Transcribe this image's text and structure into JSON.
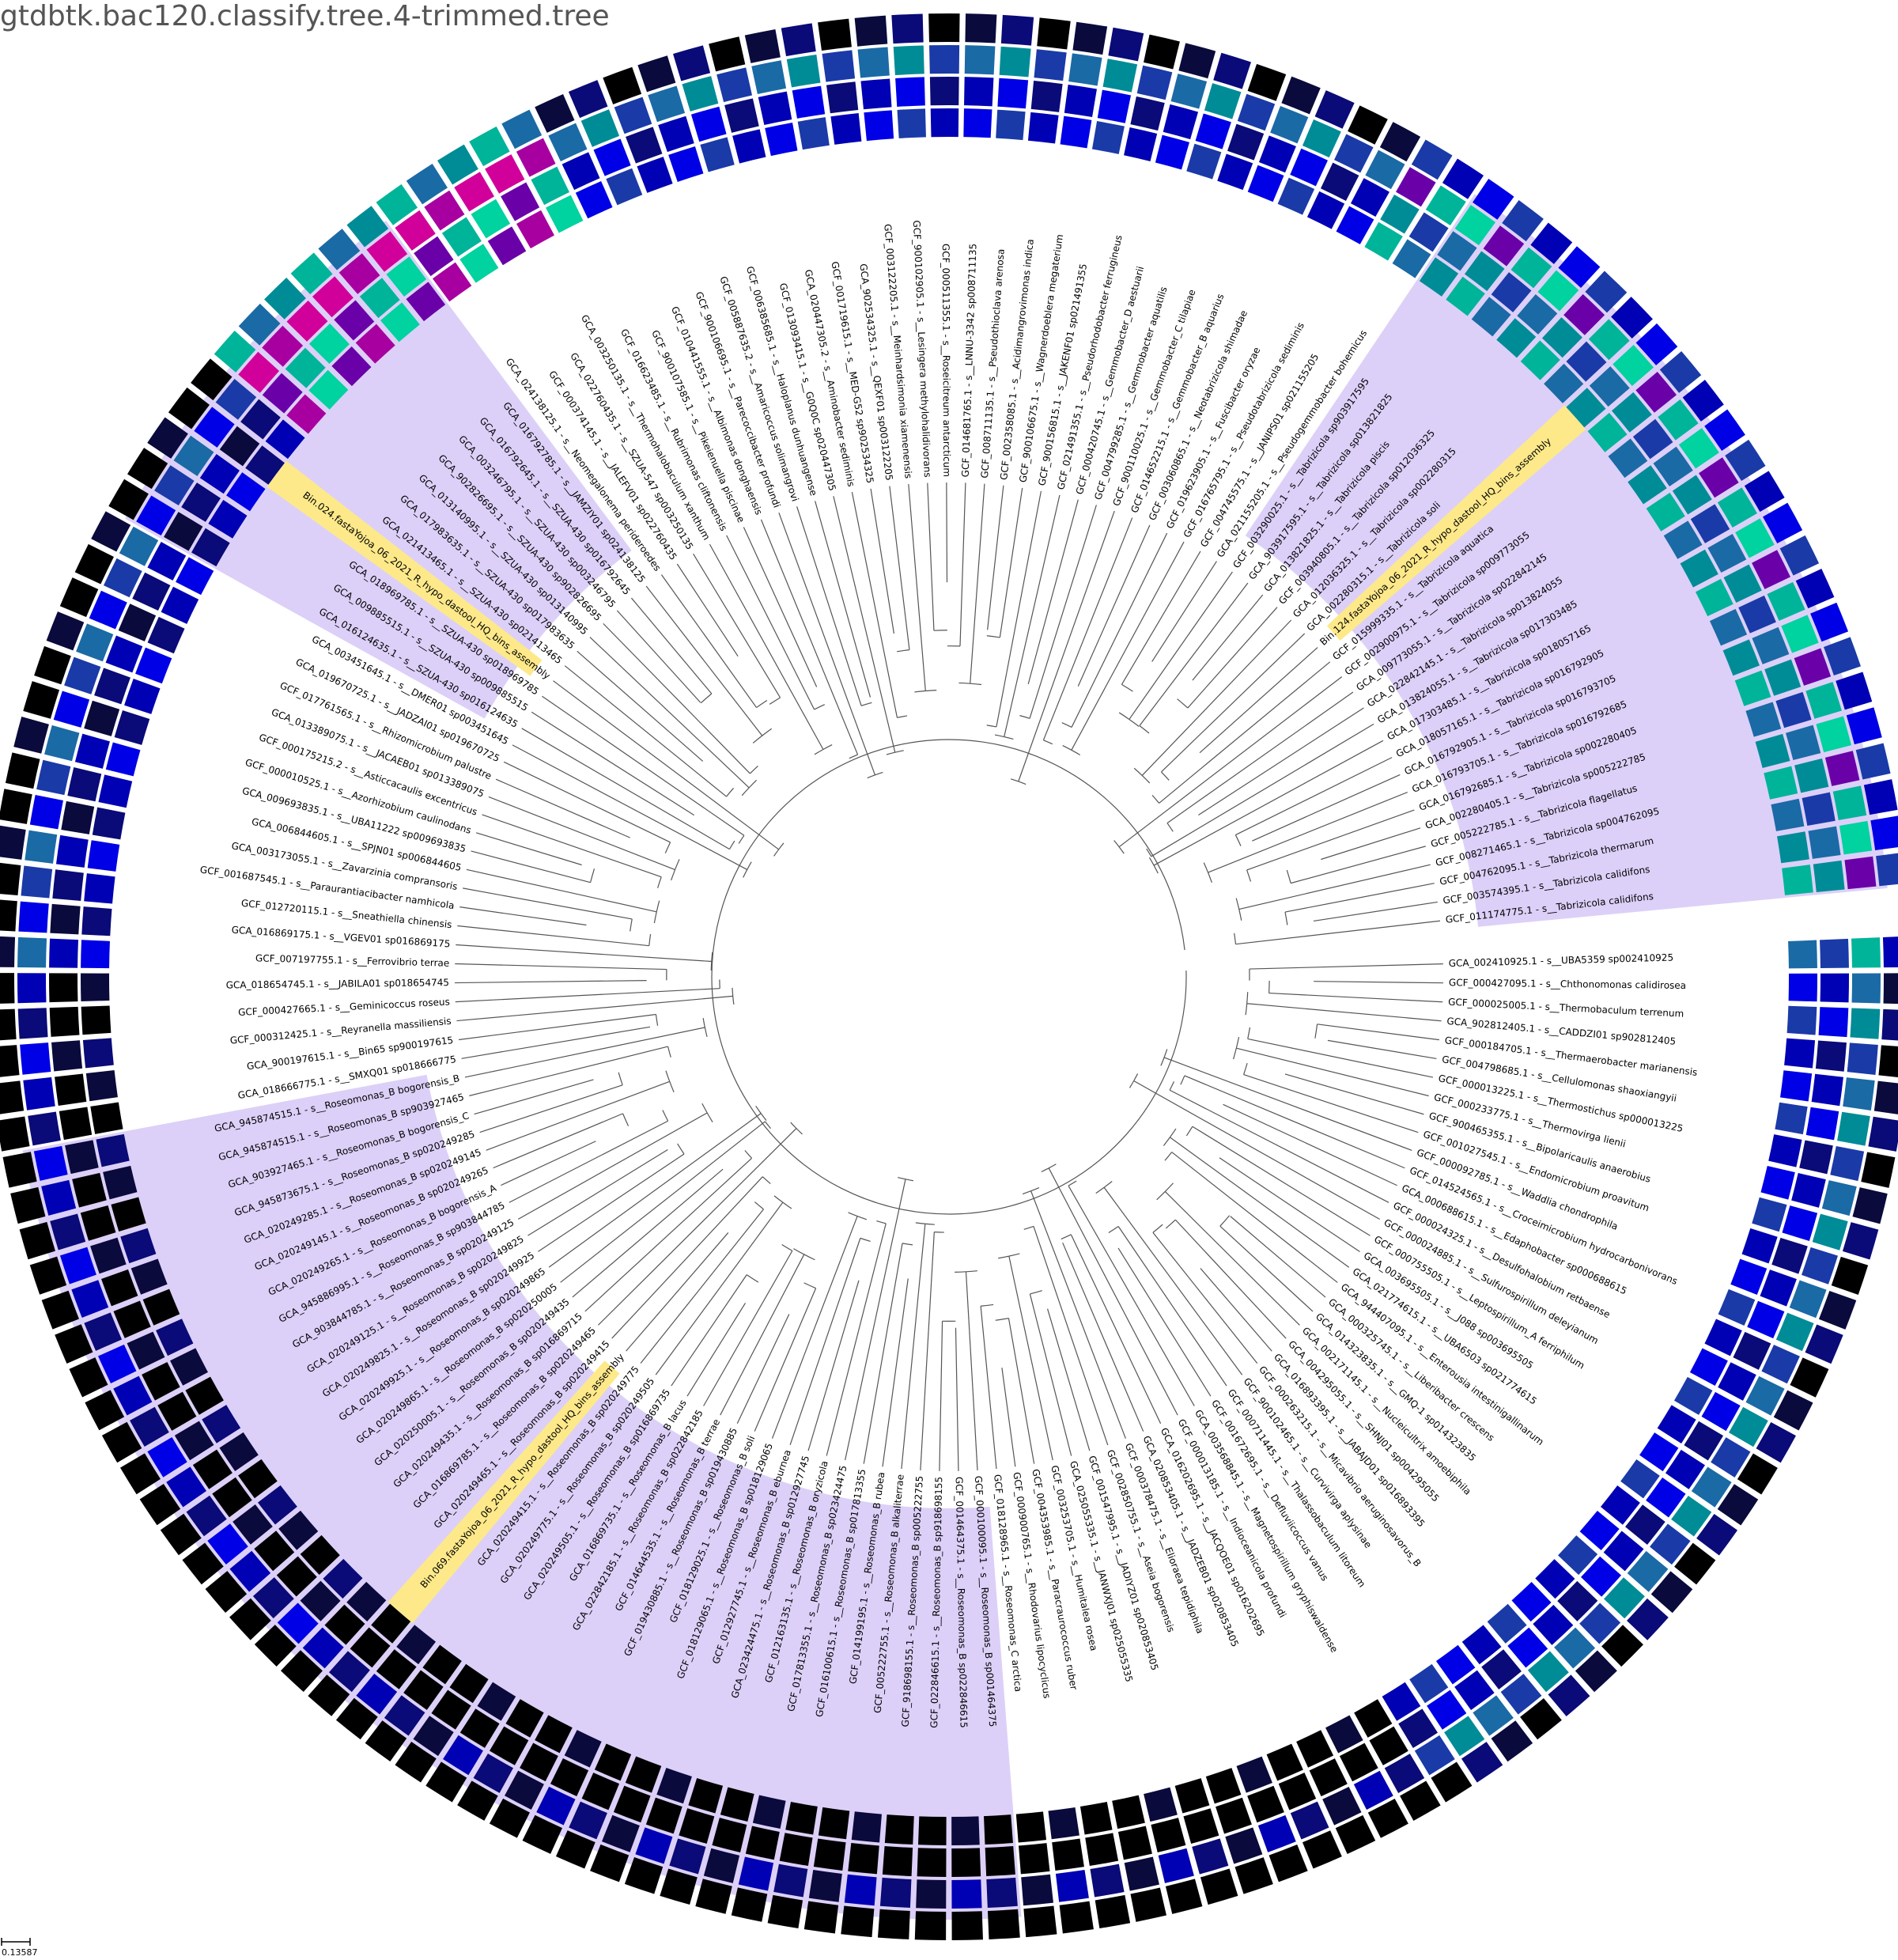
{
  "title": "gtdbtk.bac120.classify.tree.4-trimmed.tree",
  "scale_label": "0.13587",
  "colors": {
    "clade_highlight": "#dcd0f8",
    "query_highlight": "#fde98a",
    "branch": "#555555",
    "heat_palette": [
      "#000000",
      "#0a0a3c",
      "#0a0a78",
      "#0000b4",
      "#0000e6",
      "#1a3aa8",
      "#1a6aa6",
      "#008c96",
      "#00b49a",
      "#00d2a0",
      "#6a00a8",
      "#a800a0",
      "#d2009a"
    ]
  },
  "leaves": [
    "GCA_002410925.1 - s__UBA5359 sp002410925",
    "GCF_000427095.1 - s__Chthonomonas calidirosea",
    "GCF_000025005.1 - s__Thermobaculum terrenum",
    "GCA_902812405.1 - s__CADDZI01 sp902812405",
    "GCF_000184705.1 - s__Thermaerobacter marianensis",
    "GCF_004798685.1 - s__Cellulomonas shaoxiangyii",
    "GCF_000013225.1 - s__Thermostichus sp000013225",
    "GCF_000233775.1 - s__Thermovirga lienii",
    "GCF_900465355.1 - s__Bipolaricaulis anaerobius",
    "GCF_001027545.1 - s__Endomicrobium proavitum",
    "GCF_000092785.1 - s__Waddlia chondrophila",
    "GCF_014524565.1 - s__Croceimicrobium hydrocarbonivorans",
    "GCA_000688615.1 - s__Edaphobacter sp000688615",
    "GCF_000024325.1 - s__Desulfohalobium retbaense",
    "GCF_000024885.1 - s__Sulfurospirillum deleyianum",
    "GCF_000755505.1 - s__Leptospirillum_A ferriphilum",
    "GCA_003695505.1 - s__J088 sp003695505",
    "GCA_021774615.1 - s__UBA6503 sp021774615",
    "GCA_944407095.1 - s__Enterousia intestinigallinarum",
    "GCA_000325745.1 - s__Liberibacter crescens",
    "GCA_014323835.1 - s__GMQ-1 sp014323835",
    "GCA_002171145.1 - s__Nucleicultrix amoebiphila",
    "GCA_004295055.1 - s__SHNJ01 sp004295055",
    "GCA_016893395.1 - s__JABAJD01 sp016893395",
    "GCF_000263215.1 - s__Micavibrio aeruginosavorus_B",
    "GCF_900102465.1 - s__Curvivirga aplysinae",
    "GCF_000711445.1 - s__Thalassobaculum litoreum",
    "GCF_001672695.1 - s__Defluviicoccus vanus",
    "GCA_003568845.1 - s__Magnetospirillum gryphiswaldense",
    "GCF_000013185.1 - s__Indioceanicola profundi",
    "GCA_016202695.1 - s__JACQOE01 sp016202695",
    "GCA_020853405.1 - s__JADZEB01 sp020853405",
    "GCF_000378475.1 - s__Elioraea tepidiphila",
    "GCF_002850755.1 - s__Aseia bogorensis",
    "GCF_001547995.1 - s__JADIYZ01 sp020853405",
    "GCA_025055335.1 - s__JANWXJ01 sp025055335",
    "GCF_003253705.1 - s__Humitalea rosea",
    "GCF_004353985.1 - s__Paracraurococcus ruber",
    "GCF_000900765.1 - s__Rhodovarius lipocyclicus",
    "GCF_018128965.1 - s__Roseomonas_C arctica",
    "GCF_000100095.1 - s__Roseomonas_B sp001464375",
    "GCF_001464375.1 - s__Roseomonas_B sp022846615",
    "GCF_022846615.1 - s__Roseomonas_B sp918698155",
    "GCF_918698155.1 - s__Roseomonas_B sp005222755",
    "GCF_005222755.1 - s__Roseomonas_B alkaliterrae",
    "GCF_014199195.1 - s__Roseomonas_B rubea",
    "GCF_016100615.1 - s__Roseomonas_B sp017813355",
    "GCF_017813355.1 - s__Roseomonas_B sp023424475",
    "GCF_012163135.1 - s__Roseomonas_B oryzicola",
    "GCA_023424475.1 - s__Roseomonas_B sp012927745",
    "GCF_012927745.1 - s__Roseomonas_B eburnea",
    "GCF_018129065.1 - s__Roseomonas_B sp018129065",
    "GCF_018129025.1 - s__Roseomonas_B soli",
    "GCF_019430885.1 - s__Roseomonas_B sp019430885",
    "GCF_014644535.1 - s__Roseomonas_B terrae",
    "GCA_022842185.1 - s__Roseomonas_B sp022842185",
    "GCA_016869735.1 - s__Roseomonas_B lacus",
    "GCA_020249505.1 - s__Roseomonas_B sp016869735",
    "GCA_020249775.1 - s__Roseomonas_B sp020249505",
    "GCA_020249415.1 - s__Roseomonas_B sp020249775",
    "Bin.069.fastaYojoa_06_2021_R_hypo_dastool_HQ_bins_assembly",
    "GCA_020249465.1 - s__Roseomonas_B sp020249415",
    "GCA_016869785.1 - s__Roseomonas_B sp020249465",
    "GCA_020249435.1 - s__Roseomonas_B sp016869715",
    "GCA_020250005.1 - s__Roseomonas_B sp020249435",
    "GCA_020249865.1 - s__Roseomonas_B sp020250005",
    "GCA_020249925.1 - s__Roseomonas_B sp020249865",
    "GCA_020249825.1 - s__Roseomonas_B sp020249925",
    "GCA_020249125.1 - s__Roseomonas_B sp020249825",
    "GCA_903844785.1 - s__Roseomonas_B sp020249125",
    "GCA_945886995.1 - s__Roseomonas_B sp903844785",
    "GCA_020249265.1 - s__Roseomonas_B bogorensis_A",
    "GCA_020249145.1 - s__Roseomonas_B sp020249265",
    "GCA_020249285.1 - s__Roseomonas_B sp020249145",
    "GCA_945873675.1 - s__Roseomonas_B sp020249285",
    "GCA_903927465.1 - s__Roseomonas_B bogorensis_C",
    "GCA_945874515.1 - s__Roseomonas_B sp903927465",
    "GCA_945874515.1 - s__Roseomonas_B bogorensis_B",
    "GCA_018666775.1 - s__SMXQ01 sp018666775",
    "GCA_900197615.1 - s__Bin65 sp900197615",
    "GCF_000312425.1 - s__Reyranella massiliensis",
    "GCF_000427665.1 - s__Geminicoccus roseus",
    "GCA_018654745.1 - s__JABILA01 sp018654745",
    "GCF_007197755.1 - s__Ferrovibrio terrae",
    "GCA_016869175.1 - s__VGEV01 sp016869175",
    "GCF_012720115.1 - s__Sneathiella chinensis",
    "GCF_001687545.1 - s__Paraurantiacibacter namhicola",
    "GCA_003173055.1 - s__Zavarzinia compransoris",
    "GCA_006844605.1 - s__SPJN01 sp006844605",
    "GCA_009693835.1 - s__UBA11222 sp009693835",
    "GCF_000010525.1 - s__Azorhizobium caulinodans",
    "GCF_000175215.2 - s__Asticcacaulis excentricus",
    "GCA_013389075.1 - s__JACAEB01 sp013389075",
    "GCF_017761565.1 - s__Rhizomicrobium palustre",
    "GCA_019670725.1 - s__JADZAI01 sp019670725",
    "GCA_003451645.1 - s__DMER01 sp003451645",
    "GCA_016124635.1 - s__SZUA-430 sp016124635",
    "GCA_009885515.1 - s__SZUA-430 sp009885515",
    "GCA_018969785.1 - s__SZUA-430 sp018969785",
    "Bin.024.fastaYojoa_06_2021_R_hypo_dastool_HQ_bins_assembly",
    "GCA_021413465.1 - s__SZUA-430 sp021413465",
    "GCA_017983635.1 - s__SZUA-430 sp017983635",
    "GCA_013140995.1 - s__SZUA-430 sp013140995",
    "GCA_902826695.1 - s__SZUA-430 sp902826695",
    "GCA_003246795.1 - s__SZUA-430 sp003246795",
    "GCA_016792645.1 - s__SZUA-430 sp016792645",
    "GCA_016792785.1 - s__JAMZIY01 sp024138125",
    "GCA_024138125.1 - s__Neomegalonema perideroedes",
    "GCF_000374145.1 - s__JALEFV01 sp022760435",
    "GCA_022760435.1 - s__SZUA-547 sp003250135",
    "GCA_003250135.1 - s__Thermohalobaculum xanthum",
    "GCF_016623485.1 - s__Rubrimonas cliftonensis",
    "GCF_900107585.1 - s__Pikeienuella piscinae",
    "GCF_010441555.1 - s__Albimonas donghaensis",
    "GCF_900106695.1 - s__Parecoccibacter profundi",
    "GCF_005887635.2 - s__Amaricoccus solimangrovi",
    "GCF_006385685.1 - s__Haloplanus dunhuangense",
    "GCF_013093415.1 - s__G0Q0C sp020447305",
    "GCA_020447305.2 - s__Aminobacter sediminis",
    "GCF_001719615.1 - s__MED-G52 sp902534325",
    "GCA_902534325.1 - s__QEXF01 sp003122205",
    "GCF_003122205.1 - s__Meinhardsimonia xiamenensis",
    "GCF_900102905.1 - s__Lesingera methylohalidivorans",
    "GCF_000511355.1 - s__Roseicitreum antarcticum",
    "GCF_014681765.1 - s__LNNU-3342 sp008711135",
    "GCF_008711135.1 - s__Pseudothioclava arenosa",
    "GCF_002358085.1 - s__Acidimangrovimonas indica",
    "GCF_900106675.1 - s__Wagnerdoeblera megaterium",
    "GCF_900156815.1 - s__JAKENF01 sp021491355",
    "GCF_021491355.1 - s__Pseudorhodobacter ferrugineus",
    "GCF_000420745.1 - s__Gemmobacter_D aestuarii",
    "GCF_004799285.1 - s__Gemmobacter aquatilis",
    "GCF_900110025.1 - s__Gemmobacter_C tilapiae",
    "GCF_014652215.1 - s__Gemmobacter_B aquarius",
    "GCF_003060865.1 - s__Neotabrizicola shimadae",
    "GCF_019623905.1 - s__Fuscibacter oryzae",
    "GCF_016765795.1 - s__Pseudotabrizicola sediminis",
    "GCF_004745575.1 - s__JANIPS01 sp021155205",
    "GCA_021155205.1 - s__Pseudogemmobacter bohemicus",
    "GCF_003290025.1 - s__Tabrizicola sp903917595",
    "GCA_903917595.1 - s__Tabrizicola sp013821825",
    "GCA_013821825.1 - s__Tabrizicola piscis",
    "GCF_003940805.1 - s__Tabrizicola sp012036325",
    "GCA_012036325.1 - s__Tabrizicola sp002280315",
    "GCA_002280315.1 - s__Tabrizicola soli",
    "Bin.124.fastaYojoa_06_2021_R_hypo_dastool_HQ_bins_assembly",
    "GCF_015999335.1 - s__Tabrizicola aquatica",
    "GCF_002900975.1 - s__Tabrizicola sp009773055",
    "GCA_009773055.1 - s__Tabrizicola sp022842145",
    "GCA_022842145.1 - s__Tabrizicola sp013824055",
    "GCA_013824055.1 - s__Tabrizicola sp017303485",
    "GCA_017303485.1 - s__Tabrizicola sp018057165",
    "GCA_018057165.1 - s__Tabrizicola sp016792905",
    "GCA_016792905.1 - s__Tabrizicola sp016793705",
    "GCA_016793705.1 - s__Tabrizicola sp016792685",
    "GCA_016792685.1 - s__Tabrizicola sp002280405",
    "GCA_002280405.1 - s__Tabrizicola sp005222785",
    "GCF_005222785.1 - s__Tabrizicola flagellatus",
    "GCF_008271465.1 - s__Tabrizicola sp004762095",
    "GCF_004762095.1 - s__Tabrizicola thermarum",
    "GCF_003574395.1 - s__Tabrizicola calidifons",
    "GCF_011174775.1 - s__Tabrizicola calidifons"
  ],
  "query_bins": [
    "Bin.069.fastaYojoa_06_2021_R_hypo_dastool_HQ_bins_assembly",
    "Bin.024.fastaYojoa_06_2021_R_hypo_dastool_HQ_bins_assembly",
    "Bin.124.fastaYojoa_06_2021_R_hypo_dastool_HQ_bins_assembly"
  ]
}
